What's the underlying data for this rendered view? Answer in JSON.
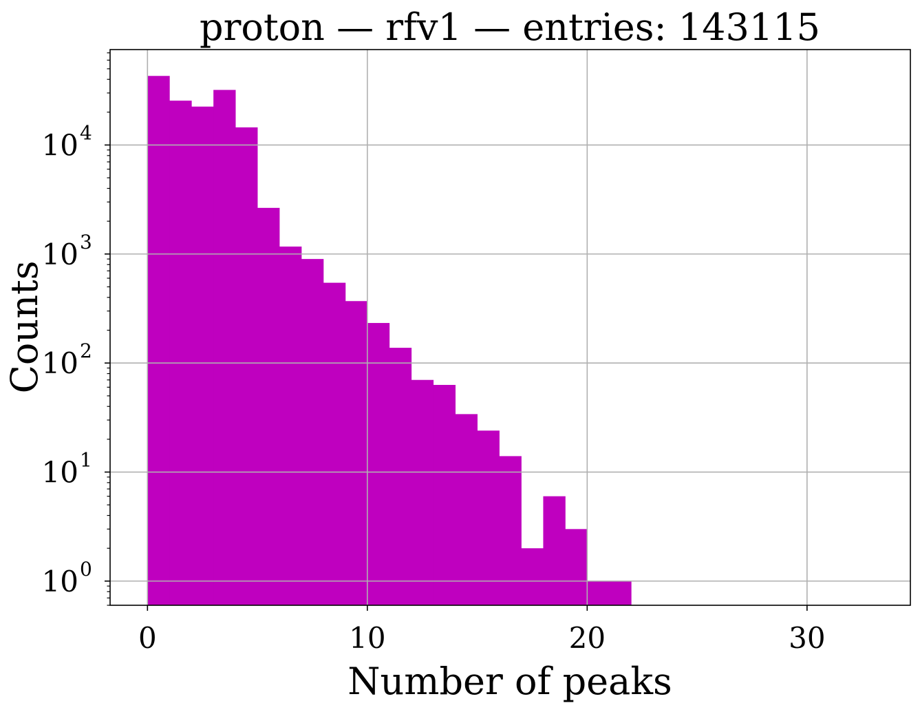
{
  "chart_data": {
    "type": "bar",
    "title": "proton — rfv1 — entries: 143115",
    "xlabel": "Number of peaks",
    "ylabel": "Counts",
    "xlim": [
      -1.7,
      34.7
    ],
    "ylim": [
      0.6,
      75000
    ],
    "yscale": "log",
    "grid": true,
    "bar_color": "#bf00bf",
    "bin_width": 1,
    "bins": [
      {
        "x": 0,
        "count": 43000
      },
      {
        "x": 1,
        "count": 25500
      },
      {
        "x": 2,
        "count": 22500
      },
      {
        "x": 3,
        "count": 32000
      },
      {
        "x": 4,
        "count": 14500
      },
      {
        "x": 5,
        "count": 2650
      },
      {
        "x": 6,
        "count": 1170
      },
      {
        "x": 7,
        "count": 900
      },
      {
        "x": 8,
        "count": 545
      },
      {
        "x": 9,
        "count": 370
      },
      {
        "x": 10,
        "count": 233
      },
      {
        "x": 11,
        "count": 138
      },
      {
        "x": 12,
        "count": 70
      },
      {
        "x": 13,
        "count": 63
      },
      {
        "x": 14,
        "count": 34
      },
      {
        "x": 15,
        "count": 24
      },
      {
        "x": 16,
        "count": 14
      },
      {
        "x": 17,
        "count": 2
      },
      {
        "x": 18,
        "count": 6
      },
      {
        "x": 19,
        "count": 3
      },
      {
        "x": 20,
        "count": 1
      },
      {
        "x": 21,
        "count": 1
      }
    ],
    "x_ticks": [
      {
        "value": 0,
        "label": "0"
      },
      {
        "value": 10,
        "label": "10"
      },
      {
        "value": 20,
        "label": "20"
      },
      {
        "value": 30,
        "label": "30"
      }
    ],
    "y_ticks": [
      {
        "value": 1,
        "base": "10",
        "exp": "0"
      },
      {
        "value": 10,
        "base": "10",
        "exp": "1"
      },
      {
        "value": 100,
        "base": "10",
        "exp": "2"
      },
      {
        "value": 1000,
        "base": "10",
        "exp": "3"
      },
      {
        "value": 10000,
        "base": "10",
        "exp": "4"
      }
    ]
  }
}
